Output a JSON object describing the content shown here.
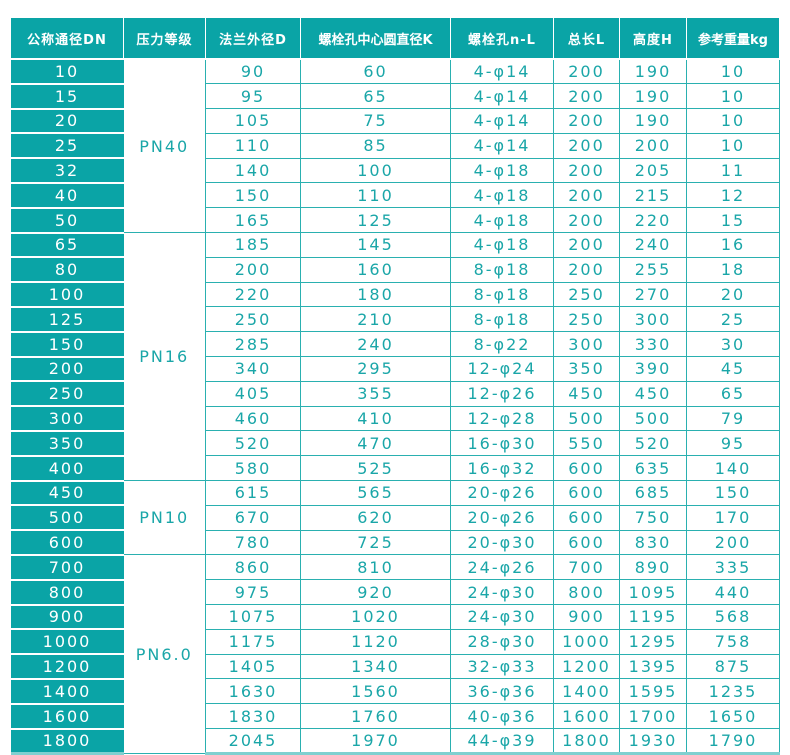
{
  "headers": [
    "公称通径DN",
    "压力等级",
    "法兰外径D",
    "螺栓孔中心圆直径K",
    "螺栓孔n-L",
    "总长L",
    "高度H",
    "参考重量kg"
  ],
  "groups": [
    {
      "pressure": "PN40",
      "rows": [
        [
          "10",
          "90",
          "60",
          "4-φ14",
          "200",
          "190",
          "10"
        ],
        [
          "15",
          "95",
          "65",
          "4-φ14",
          "200",
          "190",
          "10"
        ],
        [
          "20",
          "105",
          "75",
          "4-φ14",
          "200",
          "190",
          "10"
        ],
        [
          "25",
          "110",
          "85",
          "4-φ14",
          "200",
          "200",
          "10"
        ],
        [
          "32",
          "140",
          "100",
          "4-φ18",
          "200",
          "205",
          "11"
        ],
        [
          "40",
          "150",
          "110",
          "4-φ18",
          "200",
          "215",
          "12"
        ],
        [
          "50",
          "165",
          "125",
          "4-φ18",
          "200",
          "220",
          "15"
        ]
      ]
    },
    {
      "pressure": "PN16",
      "rows": [
        [
          "65",
          "185",
          "145",
          "4-φ18",
          "200",
          "240",
          "16"
        ],
        [
          "80",
          "200",
          "160",
          "8-φ18",
          "200",
          "255",
          "18"
        ],
        [
          "100",
          "220",
          "180",
          "8-φ18",
          "250",
          "270",
          "20"
        ],
        [
          "125",
          "250",
          "210",
          "8-φ18",
          "250",
          "300",
          "25"
        ],
        [
          "150",
          "285",
          "240",
          "8-φ22",
          "300",
          "330",
          "30"
        ],
        [
          "200",
          "340",
          "295",
          "12-φ24",
          "350",
          "390",
          "45"
        ],
        [
          "250",
          "405",
          "355",
          "12-φ26",
          "450",
          "450",
          "65"
        ],
        [
          "300",
          "460",
          "410",
          "12-φ28",
          "500",
          "500",
          "79"
        ],
        [
          "350",
          "520",
          "470",
          "16-φ30",
          "550",
          "520",
          "95"
        ],
        [
          "400",
          "580",
          "525",
          "16-φ32",
          "600",
          "635",
          "140"
        ]
      ]
    },
    {
      "pressure": "PN10",
      "rows": [
        [
          "450",
          "615",
          "565",
          "20-φ26",
          "600",
          "685",
          "150"
        ],
        [
          "500",
          "670",
          "620",
          "20-φ26",
          "600",
          "750",
          "170"
        ],
        [
          "600",
          "780",
          "725",
          "20-φ30",
          "600",
          "830",
          "200"
        ]
      ]
    },
    {
      "pressure": "PN6.0",
      "rows": [
        [
          "700",
          "860",
          "810",
          "24-φ26",
          "700",
          "890",
          "335"
        ],
        [
          "800",
          "975",
          "920",
          "24-φ30",
          "800",
          "1095",
          "440"
        ],
        [
          "900",
          "1075",
          "1020",
          "24-φ30",
          "900",
          "1195",
          "568"
        ],
        [
          "1000",
          "1175",
          "1120",
          "28-φ30",
          "1000",
          "1295",
          "758"
        ],
        [
          "1200",
          "1405",
          "1340",
          "32-φ33",
          "1200",
          "1395",
          "875"
        ],
        [
          "1400",
          "1630",
          "1560",
          "36-φ36",
          "1400",
          "1595",
          "1235"
        ],
        [
          "1600",
          "1830",
          "1760",
          "40-φ36",
          "1600",
          "1700",
          "1650"
        ],
        [
          "1800",
          "2045",
          "1970",
          "44-φ39",
          "1800",
          "1930",
          "1790"
        ]
      ]
    }
  ]
}
